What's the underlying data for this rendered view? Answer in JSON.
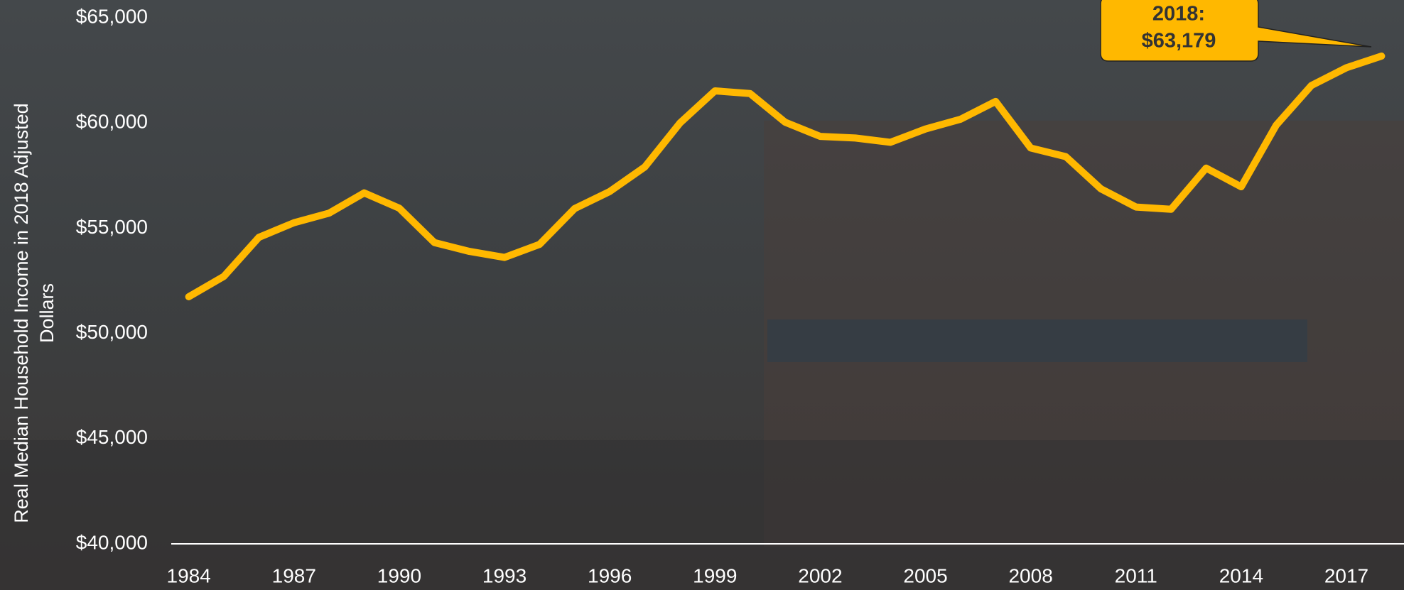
{
  "chart_data": {
    "type": "line",
    "y_label": "Real Median Household Income in 2018 Adjusted Dollars",
    "x": [
      1984,
      1985,
      1986,
      1987,
      1988,
      1989,
      1990,
      1991,
      1992,
      1993,
      1994,
      1995,
      1996,
      1997,
      1998,
      1999,
      2000,
      2001,
      2002,
      2003,
      2004,
      2005,
      2006,
      2007,
      2008,
      2009,
      2010,
      2011,
      2012,
      2013,
      2014,
      2015,
      2016,
      2017,
      2018
    ],
    "series": [
      {
        "color": "#ffb800",
        "values": [
          51742,
          52709,
          54568,
          55260,
          55716,
          56678,
          55952,
          54318,
          53897,
          53610,
          54233,
          55931,
          56744,
          57911,
          59996,
          61526,
          61399,
          60038,
          59360,
          59286,
          59080,
          59712,
          60178,
          61023,
          58811,
          58400,
          56873,
          56006,
          55900,
          57856,
          56969,
          59901,
          61779,
          62626,
          63179
        ]
      }
    ],
    "xlim": [
      1983.5,
      2018.6
    ],
    "xticks": [
      1984,
      1987,
      1990,
      1993,
      1996,
      1999,
      2002,
      2005,
      2008,
      2011,
      2014,
      2017
    ],
    "ylim": [
      40000,
      65000
    ],
    "yticks": [
      {
        "value": 40000,
        "label": "$40,000"
      },
      {
        "value": 45000,
        "label": "$45,000"
      },
      {
        "value": 50000,
        "label": "$50,000"
      },
      {
        "value": 55000,
        "label": "$55,000"
      },
      {
        "value": 60000,
        "label": "$60,000"
      },
      {
        "value": 65000,
        "label": "$65,000"
      }
    ],
    "annotation": {
      "lines": [
        "2018:",
        "$63,179"
      ]
    }
  }
}
